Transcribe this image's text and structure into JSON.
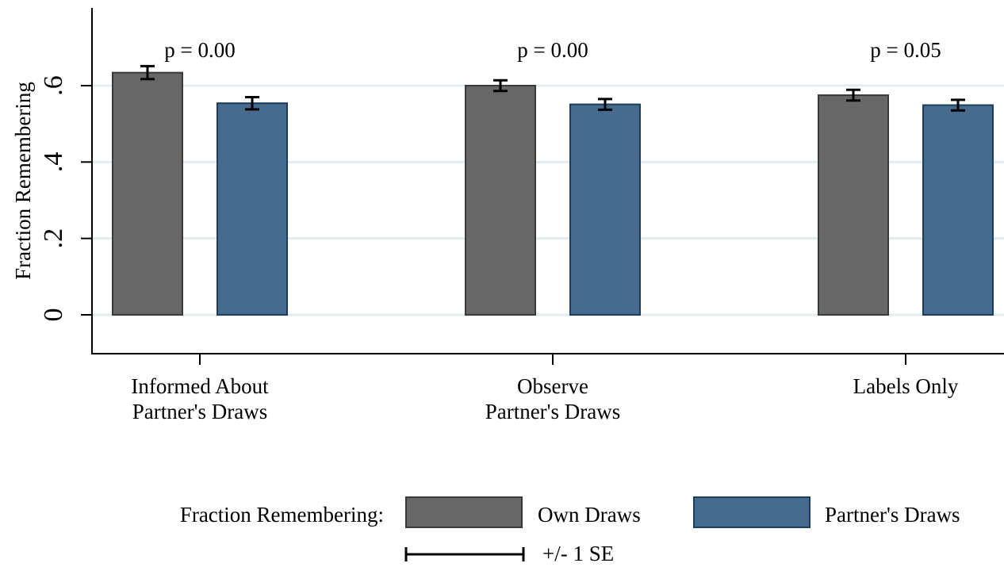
{
  "chart_data": {
    "type": "bar",
    "title": "",
    "xlabel": "",
    "ylabel": "Fraction Remembering",
    "ylim": [
      -0.1,
      0.8
    ],
    "yticks": [
      {
        "value": 0,
        "label": "0"
      },
      {
        "value": 0.2,
        "label": ".2"
      },
      {
        "value": 0.4,
        "label": ".4"
      },
      {
        "value": 0.6,
        "label": ".6"
      }
    ],
    "grid": true,
    "categories": [
      [
        "Informed About",
        "Partner's Draws"
      ],
      [
        "Observe",
        "Partner's Draws"
      ],
      [
        "Labels Only"
      ]
    ],
    "annotations": [
      "p = 0.00",
      "p = 0.00",
      "p = 0.05"
    ],
    "series": [
      {
        "name": "Own Draws",
        "color": "#676767",
        "values": [
          0.634,
          0.6,
          0.575
        ],
        "se": [
          0.017,
          0.014,
          0.014
        ]
      },
      {
        "name": "Partner's Draws",
        "color": "#476b8e",
        "values": [
          0.554,
          0.551,
          0.549
        ],
        "se": [
          0.016,
          0.014,
          0.014
        ]
      }
    ],
    "legend": {
      "placement": "bottom",
      "title": "Fraction Remembering:",
      "errorbar_label": "+/- 1 SE"
    }
  }
}
